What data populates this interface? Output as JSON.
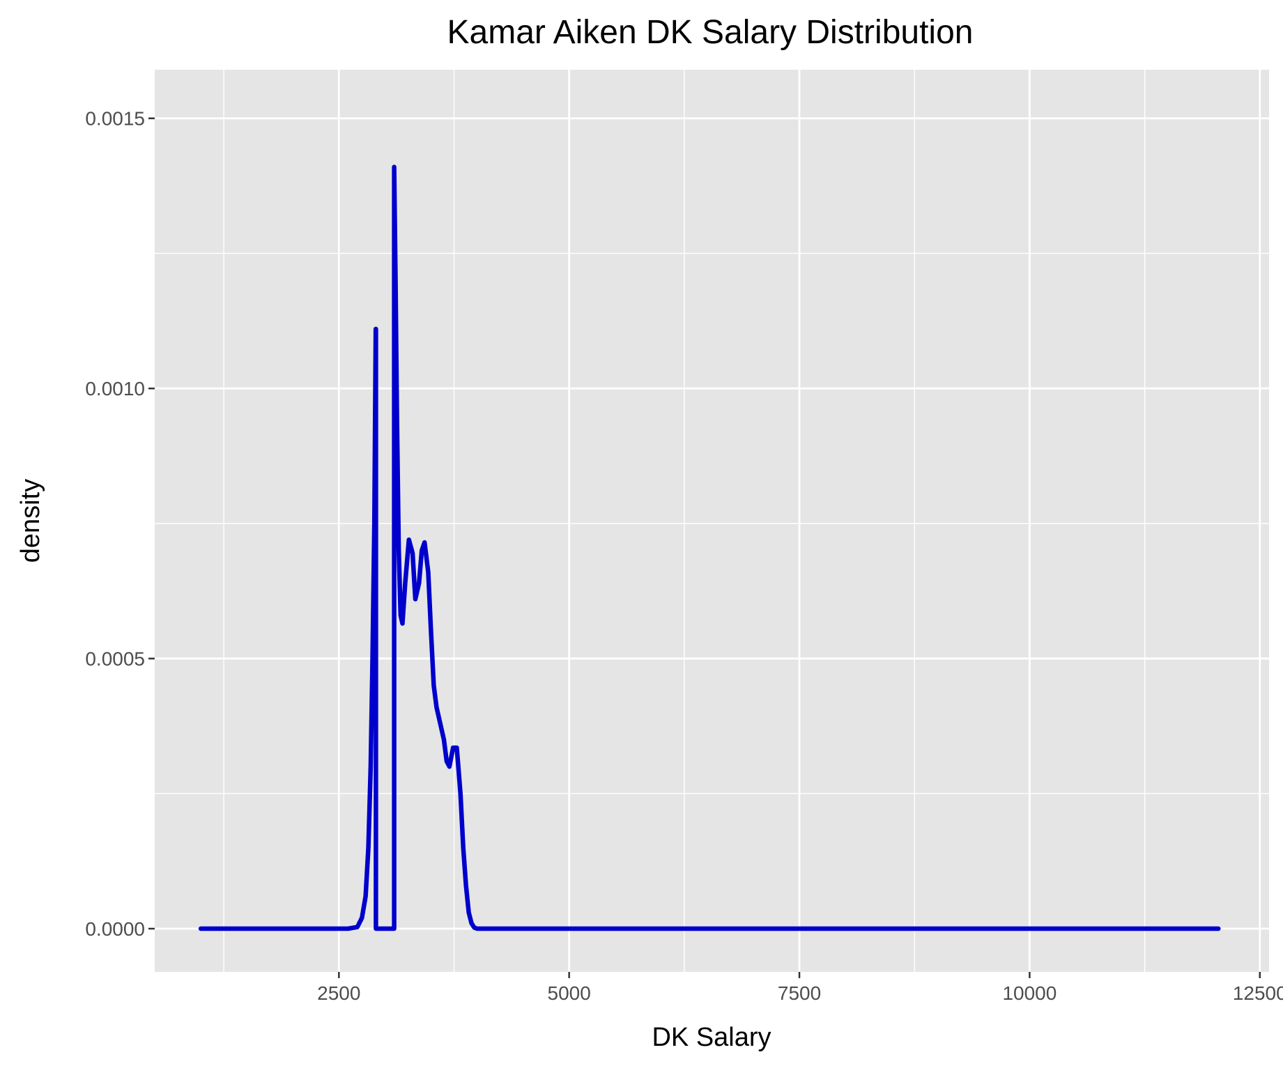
{
  "chart_data": {
    "type": "line",
    "title": "Kamar Aiken DK Salary Distribution",
    "xlabel": "DK Salary",
    "ylabel": "density",
    "xlim": [
      500,
      12600
    ],
    "ylim": [
      -8e-05,
      0.00159
    ],
    "x_ticks": [
      2500,
      5000,
      7500,
      10000,
      12500
    ],
    "x_tick_labels": [
      "2500",
      "5000",
      "7500",
      "10000",
      "12500"
    ],
    "y_ticks": [
      0,
      0.0005,
      0.001,
      0.0015
    ],
    "y_tick_labels": [
      "0.0000",
      "0.0005",
      "0.0010",
      "0.0015"
    ],
    "grid": true,
    "colors": {
      "panel": "#e5e5e5",
      "grid": "#ffffff",
      "line": "#0000cc"
    },
    "series": [
      {
        "x": [
          1000,
          2600,
          2700,
          2750,
          2790,
          2820,
          2845,
          2865,
          2885,
          2900,
          2902,
          2902,
          3100,
          3100,
          3115,
          3130,
          3150,
          3170,
          3190,
          3220,
          3260,
          3300,
          3330,
          3370,
          3400,
          3430,
          3470,
          3500,
          3530,
          3560,
          3600,
          3640,
          3670,
          3700,
          3740,
          3780,
          3820,
          3850,
          3880,
          3910,
          3940,
          3970,
          4000,
          4030,
          4060,
          4090,
          4120,
          4160,
          4200,
          5000,
          7500,
          10000,
          12050
        ],
        "y": [
          0,
          0,
          3e-06,
          2e-05,
          6e-05,
          0.00015,
          0.0003,
          0.0005,
          0.00075,
          0.00111,
          0.00111,
          0,
          0,
          0.00141,
          0.0012,
          0.00095,
          0.0007,
          0.00058,
          0.000565,
          0.00064,
          0.00072,
          0.000695,
          0.00061,
          0.00064,
          0.0007,
          0.000715,
          0.00066,
          0.00055,
          0.00045,
          0.00041,
          0.00038,
          0.00035,
          0.00031,
          0.0003,
          0.000335,
          0.000335,
          0.00025,
          0.00015,
          8e-05,
          3e-05,
          1e-05,
          2e-06,
          0,
          0,
          0,
          0,
          0,
          0,
          0,
          0,
          0,
          0,
          0
        ]
      }
    ]
  }
}
